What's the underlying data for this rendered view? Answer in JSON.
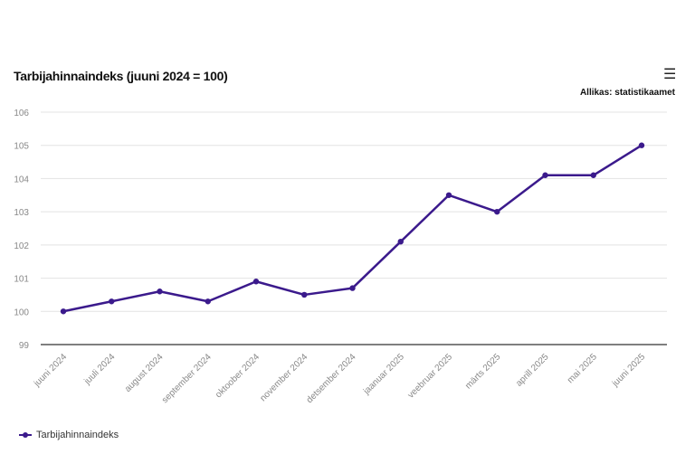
{
  "chart_data": {
    "type": "line",
    "title": "Tarbijahinnaindeks (juuni 2024 = 100)",
    "source": "Allikas: statistikaamet",
    "categories": [
      "juuni 2024",
      "juuli 2024",
      "august 2024",
      "september 2024",
      "oktoober 2024",
      "november 2024",
      "detsember 2024",
      "jaanuar 2025",
      "veebruar 2025",
      "märts 2025",
      "aprill 2025",
      "mai 2025",
      "juuni 2025"
    ],
    "series": [
      {
        "name": "Tarbijahinnaindeks",
        "values": [
          100.0,
          100.3,
          100.6,
          100.3,
          100.9,
          100.5,
          100.7,
          102.1,
          103.5,
          103.0,
          104.1,
          104.1,
          105.0
        ],
        "color": "#3b1a8c"
      }
    ],
    "yticks": [
      99,
      100,
      101,
      102,
      103,
      104,
      105,
      106
    ],
    "ylim": [
      99,
      106
    ],
    "grid": true,
    "legend": "bottom-left"
  },
  "menu_icon": "hamburger-menu-icon"
}
